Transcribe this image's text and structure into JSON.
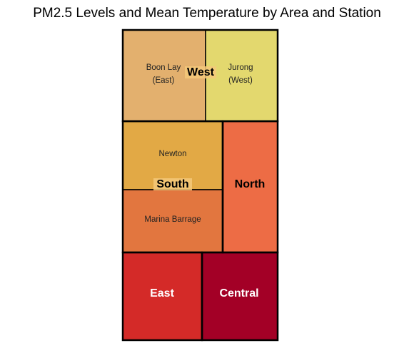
{
  "chart_data": {
    "type": "treemap",
    "title": "PM2.5 Levels and Mean Temperature by Area and Station",
    "groups": [
      {
        "area": "West",
        "stations": [
          {
            "name": "Boon Lay (East)",
            "label_lines": [
              "Boon Lay",
              "(East)"
            ],
            "color": "#e3b06e"
          },
          {
            "name": "Jurong (West)",
            "label_lines": [
              "Jurong",
              "(West)"
            ],
            "color": "#e3d86e"
          }
        ]
      },
      {
        "area": "South",
        "stations": [
          {
            "name": "Newton",
            "label_lines": [
              "Newton"
            ],
            "color": "#e2a945"
          },
          {
            "name": "Marina Barrage",
            "label_lines": [
              "Marina Barrage"
            ],
            "color": "#e2763f"
          }
        ]
      },
      {
        "area": "North",
        "stations": [
          {
            "name": "North",
            "label_lines": [],
            "color": "#ed6c45"
          }
        ]
      },
      {
        "area": "East",
        "stations": [
          {
            "name": "East",
            "label_lines": [],
            "color": "#d42a28"
          }
        ]
      },
      {
        "area": "Central",
        "stations": [
          {
            "name": "Central",
            "label_lines": [],
            "color": "#a30026"
          }
        ]
      }
    ]
  }
}
